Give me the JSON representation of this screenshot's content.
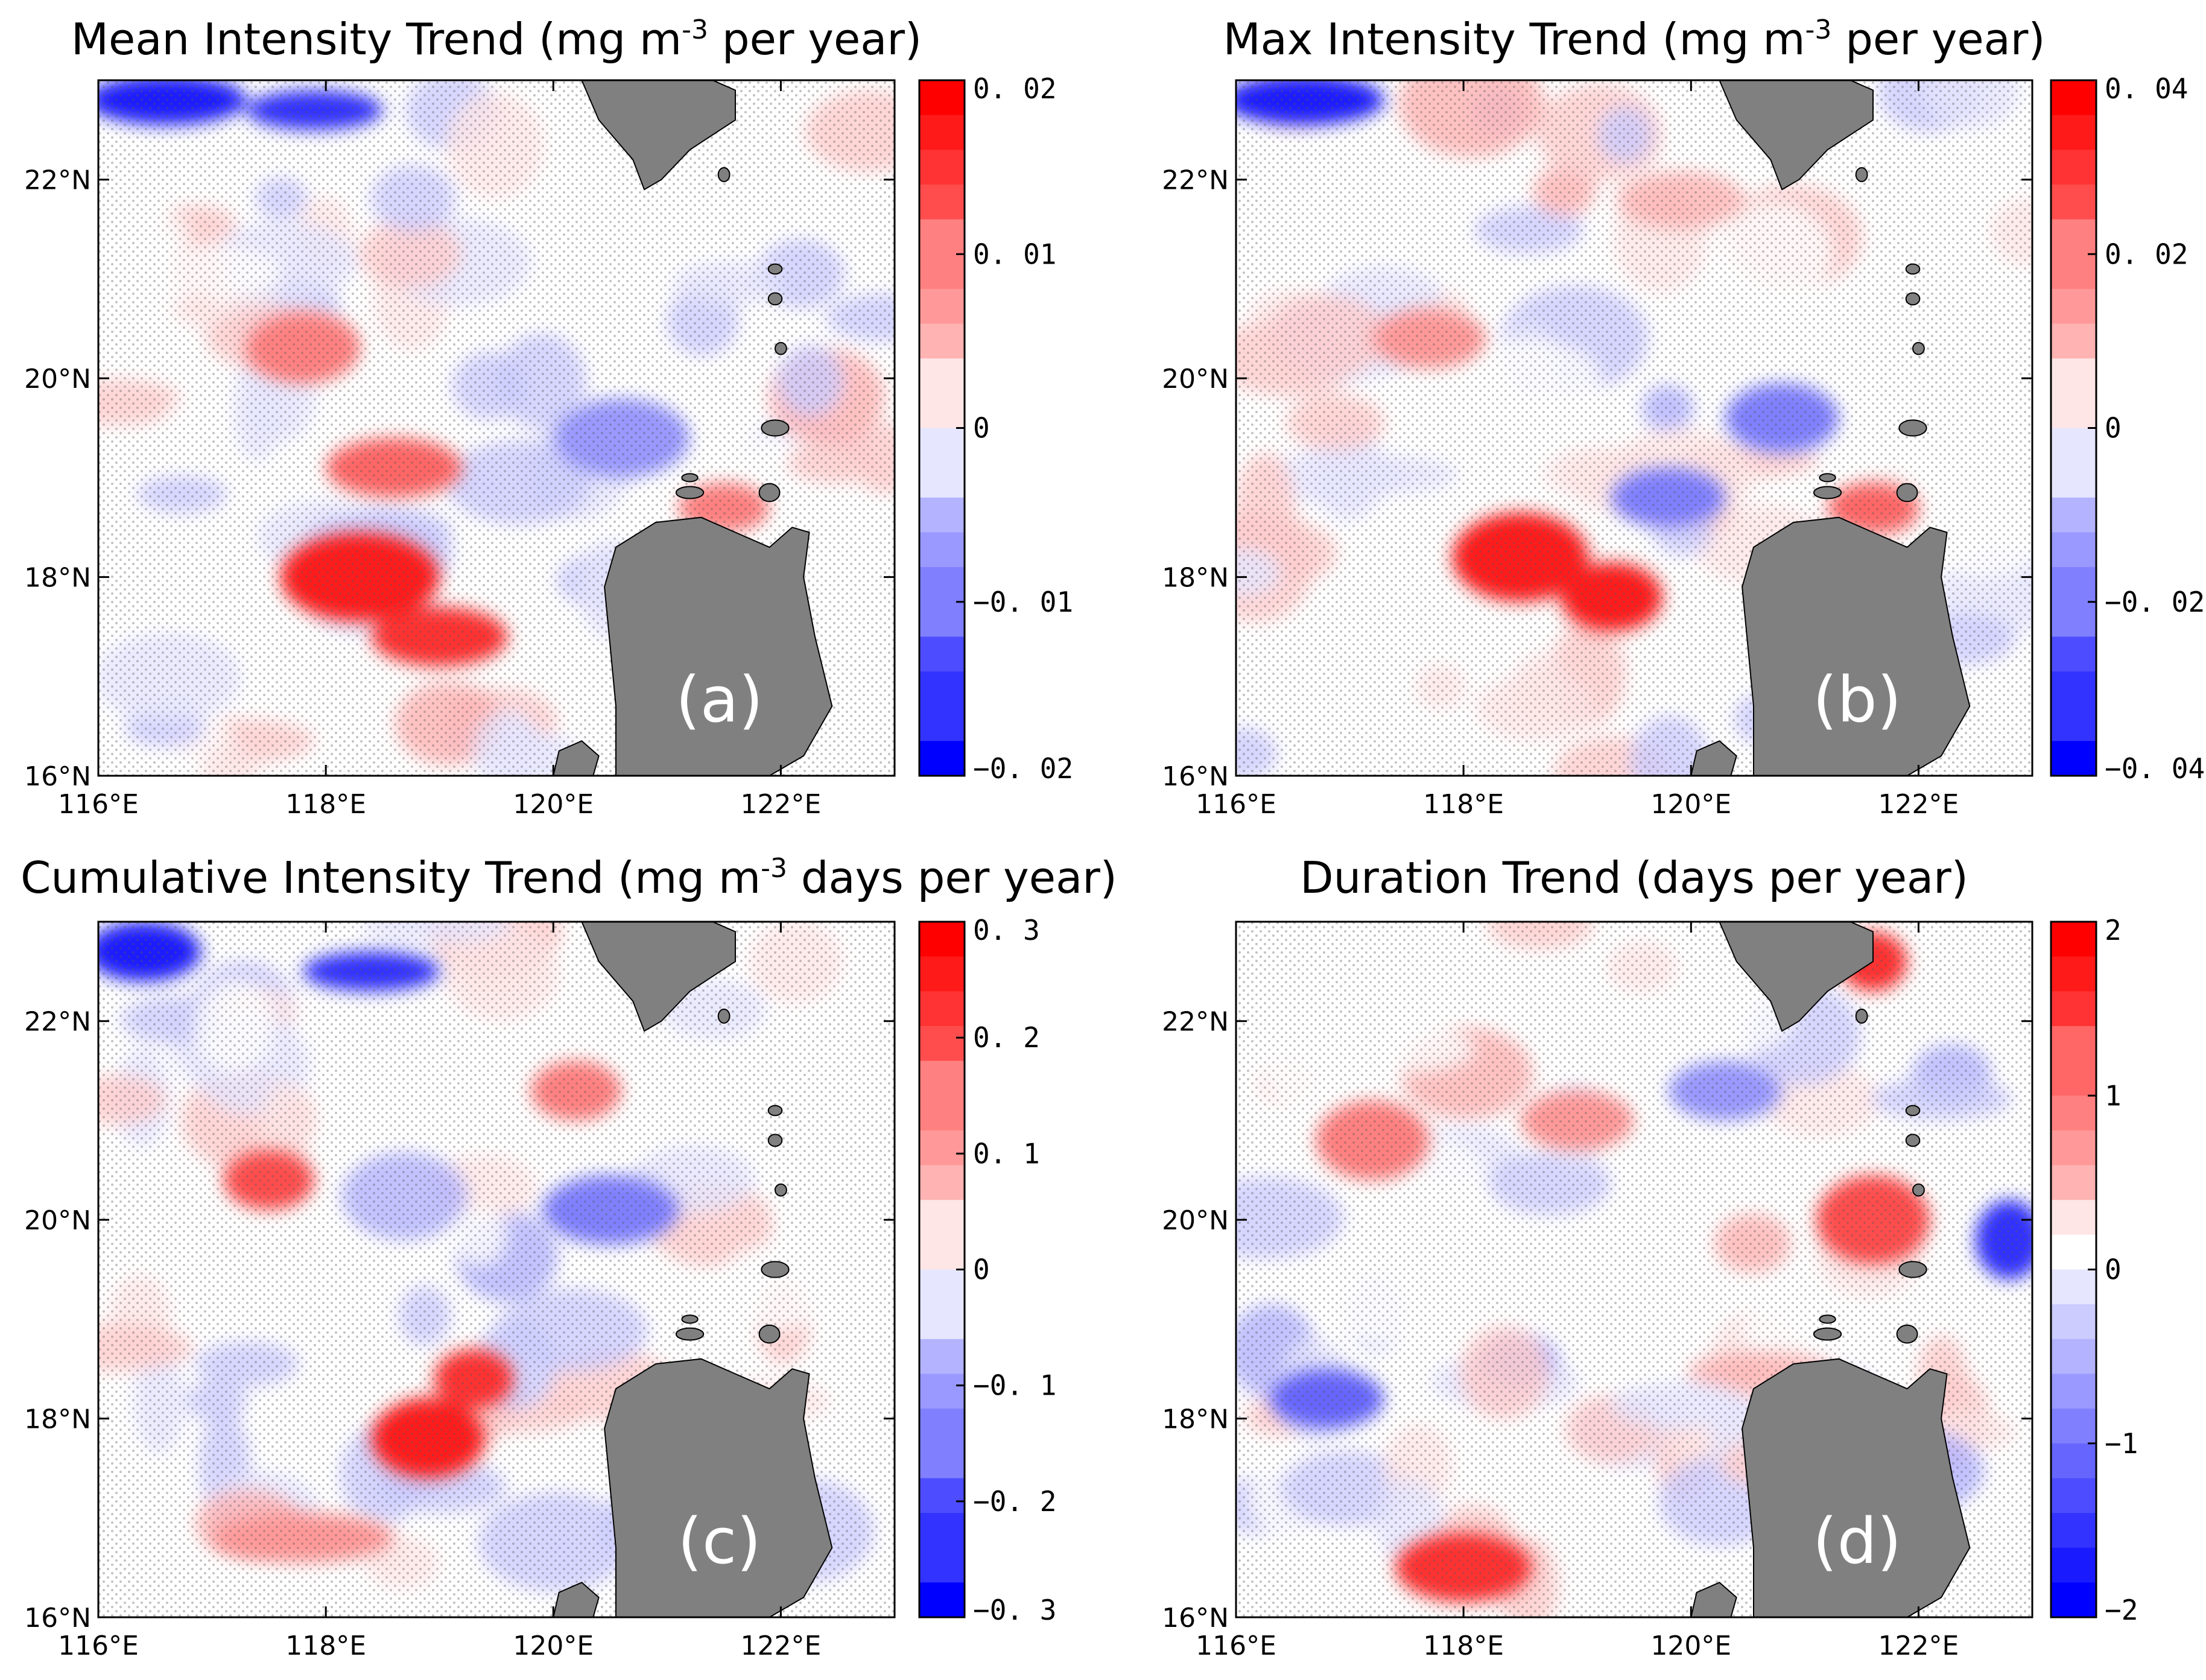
{
  "figure": {
    "panels": [
      {
        "id": "a",
        "title_prefix": "Mean Intensity Trend (mg m",
        "title_sup": "-3",
        "title_suffix": " per year)",
        "letter": "(a)",
        "colorbar_ticks": [
          {
            "value": 0.02,
            "label": "0. 02"
          },
          {
            "value": 0.01,
            "label": "0. 01"
          },
          {
            "value": 0,
            "label": "0"
          },
          {
            "value": -0.01,
            "label": "−0. 01"
          },
          {
            "value": -0.02,
            "label": "−0. 02"
          }
        ],
        "colorbar_range": [
          -0.02,
          0.02
        ],
        "features": [
          {
            "lon": 118.3,
            "lat": 18.0,
            "value": 0.018,
            "rx": 0.7,
            "ry": 0.45
          },
          {
            "lon": 119.0,
            "lat": 17.4,
            "value": 0.016,
            "rx": 0.6,
            "ry": 0.3
          },
          {
            "lon": 117.8,
            "lat": 20.3,
            "value": 0.009,
            "rx": 0.5,
            "ry": 0.35
          },
          {
            "lon": 118.6,
            "lat": 19.1,
            "value": 0.012,
            "rx": 0.6,
            "ry": 0.3
          },
          {
            "lon": 116.6,
            "lat": 22.8,
            "value": -0.018,
            "rx": 0.7,
            "ry": 0.25
          },
          {
            "lon": 117.9,
            "lat": 22.7,
            "value": -0.016,
            "rx": 0.6,
            "ry": 0.2
          },
          {
            "lon": 120.6,
            "lat": 19.4,
            "value": -0.008,
            "rx": 0.6,
            "ry": 0.4
          },
          {
            "lon": 121.5,
            "lat": 18.7,
            "value": 0.01,
            "rx": 0.4,
            "ry": 0.25
          }
        ]
      },
      {
        "id": "b",
        "title_prefix": "Max Intensity Trend (mg m",
        "title_sup": "-3",
        "title_suffix": " per year)",
        "letter": "(b)",
        "colorbar_ticks": [
          {
            "value": 0.04,
            "label": "0. 04"
          },
          {
            "value": 0.02,
            "label": "0. 02"
          },
          {
            "value": 0,
            "label": "0"
          },
          {
            "value": -0.02,
            "label": "−0. 02"
          },
          {
            "value": -0.04,
            "label": "−0. 04"
          }
        ],
        "colorbar_range": [
          -0.04,
          0.04
        ],
        "features": [
          {
            "lon": 118.5,
            "lat": 18.2,
            "value": 0.036,
            "rx": 0.6,
            "ry": 0.45
          },
          {
            "lon": 119.3,
            "lat": 17.8,
            "value": 0.034,
            "rx": 0.45,
            "ry": 0.35
          },
          {
            "lon": 117.7,
            "lat": 20.4,
            "value": 0.016,
            "rx": 0.5,
            "ry": 0.3
          },
          {
            "lon": 116.6,
            "lat": 22.8,
            "value": -0.036,
            "rx": 0.7,
            "ry": 0.25
          },
          {
            "lon": 120.8,
            "lat": 19.6,
            "value": -0.02,
            "rx": 0.5,
            "ry": 0.35
          },
          {
            "lon": 121.6,
            "lat": 18.7,
            "value": 0.024,
            "rx": 0.4,
            "ry": 0.25
          },
          {
            "lon": 119.8,
            "lat": 18.8,
            "value": -0.018,
            "rx": 0.5,
            "ry": 0.3
          }
        ]
      },
      {
        "id": "c",
        "title_prefix": "Cumulative Intensity Trend (mg m",
        "title_sup": "-3",
        "title_suffix": " days per year)",
        "letter": "(c)",
        "colorbar_ticks": [
          {
            "value": 0.3,
            "label": "0. 3"
          },
          {
            "value": 0.2,
            "label": "0. 2"
          },
          {
            "value": 0.1,
            "label": "0. 1"
          },
          {
            "value": 0,
            "label": "0"
          },
          {
            "value": -0.1,
            "label": "−0. 1"
          },
          {
            "value": -0.2,
            "label": "−0. 2"
          },
          {
            "value": -0.3,
            "label": "−0. 3"
          }
        ],
        "colorbar_range": [
          -0.3,
          0.3
        ],
        "features": [
          {
            "lon": 118.9,
            "lat": 17.8,
            "value": 0.27,
            "rx": 0.5,
            "ry": 0.4
          },
          {
            "lon": 119.3,
            "lat": 18.4,
            "value": 0.25,
            "rx": 0.35,
            "ry": 0.3
          },
          {
            "lon": 117.5,
            "lat": 20.4,
            "value": 0.2,
            "rx": 0.4,
            "ry": 0.3
          },
          {
            "lon": 117.8,
            "lat": 16.8,
            "value": 0.12,
            "rx": 0.8,
            "ry": 0.25
          },
          {
            "lon": 116.4,
            "lat": 22.7,
            "value": -0.28,
            "rx": 0.5,
            "ry": 0.3
          },
          {
            "lon": 118.4,
            "lat": 22.5,
            "value": -0.24,
            "rx": 0.6,
            "ry": 0.2
          },
          {
            "lon": 120.5,
            "lat": 20.1,
            "value": -0.14,
            "rx": 0.6,
            "ry": 0.35
          },
          {
            "lon": 120.2,
            "lat": 21.3,
            "value": 0.16,
            "rx": 0.4,
            "ry": 0.3
          }
        ]
      },
      {
        "id": "d",
        "title_prefix": "Duration Trend (days per year)",
        "title_sup": "",
        "title_suffix": "",
        "letter": "(d)",
        "colorbar_ticks": [
          {
            "value": 2,
            "label": "2"
          },
          {
            "value": 1,
            "label": "1"
          },
          {
            "value": 0,
            "label": "0"
          },
          {
            "value": -1,
            "label": "−1"
          },
          {
            "value": -2,
            "label": "−2"
          }
        ],
        "colorbar_range": [
          -2,
          2
        ],
        "features": [
          {
            "lon": 118.0,
            "lat": 16.5,
            "value": 1.5,
            "rx": 0.6,
            "ry": 0.35
          },
          {
            "lon": 117.2,
            "lat": 20.8,
            "value": 1.0,
            "rx": 0.5,
            "ry": 0.4
          },
          {
            "lon": 121.6,
            "lat": 20.0,
            "value": 1.3,
            "rx": 0.5,
            "ry": 0.45
          },
          {
            "lon": 121.6,
            "lat": 22.6,
            "value": 1.5,
            "rx": 0.3,
            "ry": 0.3
          },
          {
            "lon": 116.8,
            "lat": 18.2,
            "value": -1.2,
            "rx": 0.5,
            "ry": 0.3
          },
          {
            "lon": 120.3,
            "lat": 21.3,
            "value": -0.8,
            "rx": 0.5,
            "ry": 0.3
          },
          {
            "lon": 119.0,
            "lat": 21.0,
            "value": 0.8,
            "rx": 0.5,
            "ry": 0.3
          },
          {
            "lon": 122.8,
            "lat": 19.8,
            "value": -1.5,
            "rx": 0.3,
            "ry": 0.4
          }
        ]
      }
    ],
    "lon_ticks": [
      {
        "value": 116,
        "label": "116°E"
      },
      {
        "value": 118,
        "label": "118°E"
      },
      {
        "value": 120,
        "label": "120°E"
      },
      {
        "value": 122,
        "label": "122°E"
      }
    ],
    "lat_ticks": [
      {
        "value": 16,
        "label": "16°N"
      },
      {
        "value": 18,
        "label": "18°N"
      },
      {
        "value": 20,
        "label": "20°N"
      },
      {
        "value": 22,
        "label": "22°N"
      }
    ],
    "lon_range": [
      116,
      123
    ],
    "lat_range": [
      16,
      23
    ],
    "colors": {
      "positive": "#ff0000",
      "negative": "#0000ff",
      "neutral": "#ffffff",
      "land": "#808080",
      "frame": "#000000",
      "stipple": "#555555"
    }
  }
}
